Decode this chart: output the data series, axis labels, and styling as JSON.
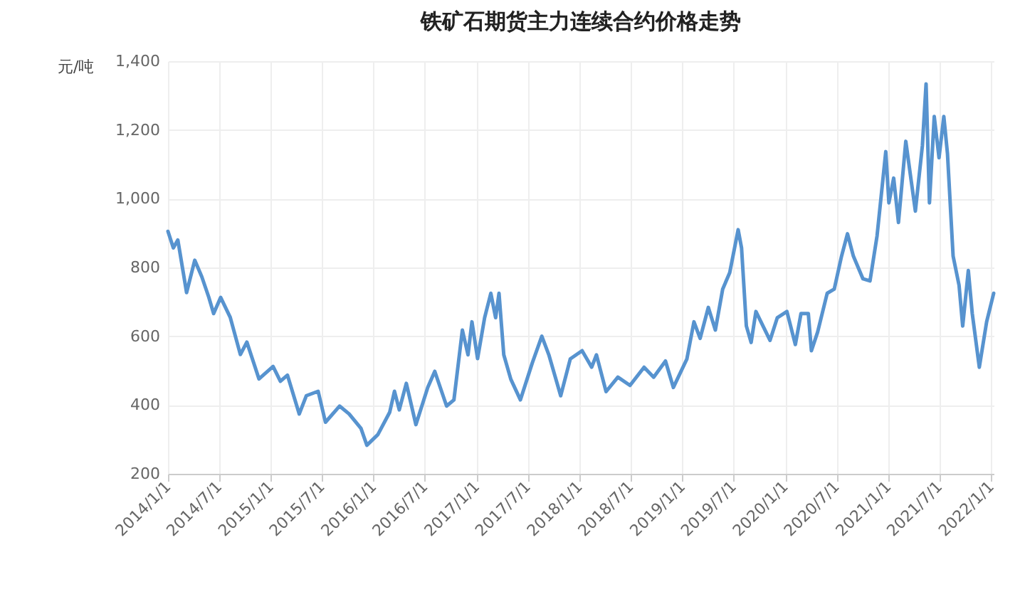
{
  "chart_data": {
    "type": "line",
    "title": "铁矿石期货主力连续合约价格走势",
    "ylabel": "元/吨",
    "x": [
      "2014-01-01",
      "2014-01-20",
      "2014-02-05",
      "2014-03-08",
      "2014-04-06",
      "2014-05-01",
      "2014-05-26",
      "2014-06-12",
      "2014-07-07",
      "2014-08-10",
      "2014-09-15",
      "2014-10-08",
      "2014-11-20",
      "2015-01-09",
      "2015-02-04",
      "2015-03-01",
      "2015-04-12",
      "2015-05-07",
      "2015-06-18",
      "2015-07-14",
      "2015-09-02",
      "2015-10-06",
      "2015-11-17",
      "2015-12-08",
      "2016-01-16",
      "2016-02-27",
      "2016-03-15",
      "2016-04-01",
      "2016-04-26",
      "2016-05-30",
      "2016-07-11",
      "2016-08-05",
      "2016-09-16",
      "2016-10-12",
      "2016-11-11",
      "2016-12-01",
      "2016-12-15",
      "2017-01-04",
      "2017-01-29",
      "2017-02-20",
      "2017-03-09",
      "2017-03-21",
      "2017-04-07",
      "2017-05-02",
      "2017-06-05",
      "2017-07-17",
      "2017-08-20",
      "2017-09-14",
      "2017-10-26",
      "2017-11-29",
      "2018-01-10",
      "2018-02-13",
      "2018-03-02",
      "2018-04-05",
      "2018-05-17",
      "2018-06-29",
      "2018-08-18",
      "2018-09-21",
      "2018-11-02",
      "2018-11-30",
      "2019-01-17",
      "2019-02-11",
      "2019-03-05",
      "2019-04-03",
      "2019-04-28",
      "2019-05-24",
      "2019-06-18",
      "2019-07-18",
      "2019-07-30",
      "2019-08-16",
      "2019-09-02",
      "2019-09-19",
      "2019-10-14",
      "2019-11-08",
      "2019-12-04",
      "2020-01-07",
      "2020-02-06",
      "2020-02-26",
      "2020-03-23",
      "2020-04-03",
      "2020-04-25",
      "2020-05-29",
      "2020-06-23",
      "2020-07-19",
      "2020-08-09",
      "2020-08-30",
      "2020-10-03",
      "2020-10-28",
      "2020-11-22",
      "2020-12-23",
      "2021-01-03",
      "2021-01-20",
      "2021-02-06",
      "2021-03-04",
      "2021-04-07",
      "2021-05-02",
      "2021-05-15",
      "2021-05-27",
      "2021-06-13",
      "2021-06-30",
      "2021-07-17",
      "2021-07-30",
      "2021-08-19",
      "2021-09-09",
      "2021-09-22",
      "2021-10-12",
      "2021-10-26",
      "2021-11-20",
      "2021-12-16",
      "2022-01-10"
    ],
    "series": [
      {
        "color": "#5793cf",
        "values": [
          905,
          857,
          880,
          727,
          821,
          773,
          713,
          666,
          713,
          655,
          547,
          583,
          476,
          512,
          469,
          487,
          374,
          427,
          440,
          350,
          397,
          374,
          332,
          283,
          314,
          379,
          440,
          386,
          463,
          343,
          451,
          498,
          397,
          415,
          618,
          546,
          642,
          535,
          654,
          725,
          654,
          725,
          546,
          475,
          415,
          522,
          600,
          546,
          427,
          534,
          558,
          510,
          546,
          439,
          481,
          457,
          510,
          481,
          528,
          451,
          534,
          642,
          594,
          684,
          618,
          737,
          785,
          910,
          857,
          630,
          582,
          672,
          630,
          588,
          654,
          672,
          576,
          666,
          666,
          558,
          612,
          725,
          737,
          833,
          898,
          833,
          767,
          761,
          892,
          1137,
          988,
          1060,
          931,
          1167,
          964,
          1155,
          1334,
          988,
          1239,
          1119,
          1239,
          1131,
          833,
          749,
          630,
          791,
          666,
          510,
          642,
          725
        ]
      }
    ],
    "xlim": [
      "2014-01-01",
      "2022-01-10"
    ],
    "xticks": [
      {
        "value": "2014-01-01",
        "label": "2014/1/1"
      },
      {
        "value": "2014-07-01",
        "label": "2014/7/1"
      },
      {
        "value": "2015-01-01",
        "label": "2015/1/1"
      },
      {
        "value": "2015-07-01",
        "label": "2015/7/1"
      },
      {
        "value": "2016-01-01",
        "label": "2016/1/1"
      },
      {
        "value": "2016-07-01",
        "label": "2016/7/1"
      },
      {
        "value": "2017-01-01",
        "label": "2017/1/1"
      },
      {
        "value": "2017-07-01",
        "label": "2017/7/1"
      },
      {
        "value": "2018-01-01",
        "label": "2018/1/1"
      },
      {
        "value": "2018-07-01",
        "label": "2018/7/1"
      },
      {
        "value": "2019-01-01",
        "label": "2019/1/1"
      },
      {
        "value": "2019-07-01",
        "label": "2019/7/1"
      },
      {
        "value": "2020-01-01",
        "label": "2020/1/1"
      },
      {
        "value": "2020-07-01",
        "label": "2020/7/1"
      },
      {
        "value": "2021-01-01",
        "label": "2021/1/1"
      },
      {
        "value": "2021-07-01",
        "label": "2021/7/1"
      },
      {
        "value": "2022-01-01",
        "label": "2022/1/1"
      }
    ],
    "ylim": [
      200,
      1400
    ],
    "yticks": [
      {
        "value": 200,
        "label": "200"
      },
      {
        "value": 400,
        "label": "400"
      },
      {
        "value": 600,
        "label": "600"
      },
      {
        "value": 800,
        "label": "800"
      },
      {
        "value": 1000,
        "label": "1,000"
      },
      {
        "value": 1200,
        "label": "1,200"
      },
      {
        "value": 1400,
        "label": "1,400"
      }
    ],
    "grid": true,
    "marker": "none",
    "line_style": "solid"
  }
}
